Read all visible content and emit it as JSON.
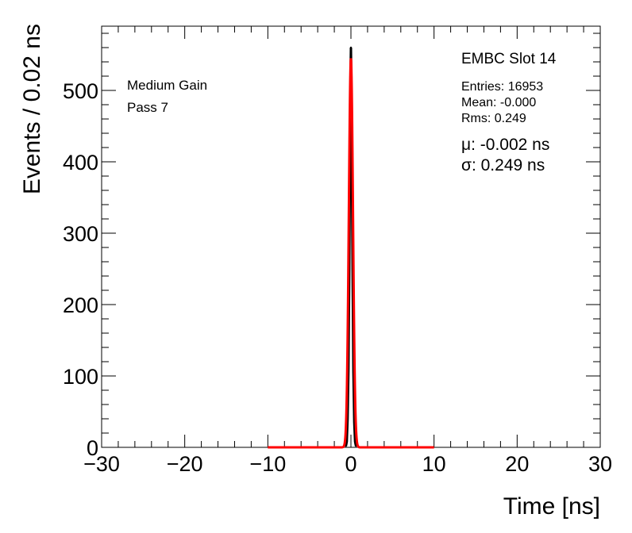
{
  "chart_data": {
    "type": "line",
    "xlabel": "Time [ns]",
    "ylabel": "Events / 0.02 ns",
    "xlim": [
      -30,
      30
    ],
    "ylim": [
      0,
      590
    ],
    "x_ticks": [
      -30,
      -20,
      -10,
      0,
      10,
      20,
      30
    ],
    "x_tick_labels": [
      "−30",
      "−20",
      "−10",
      "0",
      "10",
      "20",
      "30"
    ],
    "y_ticks": [
      0,
      100,
      200,
      300,
      400,
      500
    ],
    "y_tick_labels": [
      "0",
      "100",
      "200",
      "300",
      "400",
      "500"
    ],
    "grid": false,
    "annotations": {
      "gain": "Medium Gain",
      "pass": "Pass 7",
      "slot": "EMBC Slot 14",
      "entries": "Entries: 16953",
      "mean": "Mean: -0.000",
      "rms": "Rms: 0.249",
      "mu": "μ: -0.002 ns",
      "sigma": "σ: 0.249 ns"
    },
    "series": [
      {
        "kind": "histogram",
        "color": "#000000",
        "bin_width": 0.02,
        "x": [
          -0.6,
          -0.5,
          -0.4,
          -0.3,
          -0.2,
          -0.1,
          -0.05,
          0,
          0.05,
          0.1,
          0.2,
          0.3,
          0.4,
          0.5,
          0.6
        ],
        "values": [
          2,
          8,
          40,
          110,
          250,
          430,
          520,
          560,
          510,
          420,
          250,
          105,
          35,
          8,
          2
        ]
      },
      {
        "kind": "gaussian-fit",
        "color": "#ff0000",
        "range": [
          -10,
          10
        ],
        "mu": -0.002,
        "sigma": 0.249,
        "peak": 545
      }
    ]
  }
}
